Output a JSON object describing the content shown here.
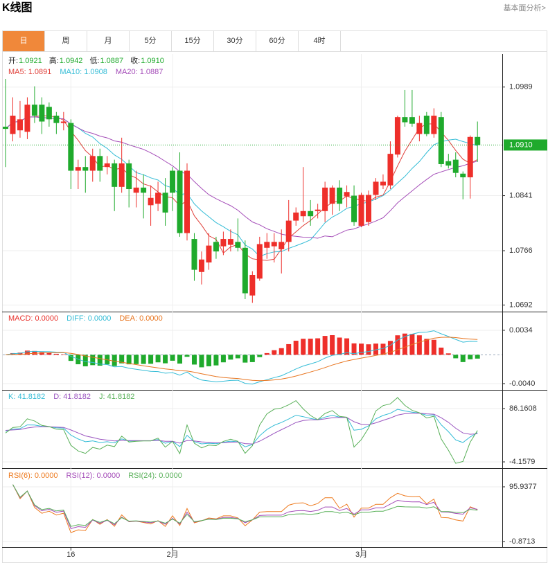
{
  "header": {
    "title": "K线图",
    "link": "基本面分析>"
  },
  "tabs": [
    "日",
    "周",
    "月",
    "5分",
    "15分",
    "30分",
    "60分",
    "4时"
  ],
  "active_tab": "日",
  "chart_data": {
    "type": "candlestick",
    "info": [
      {
        "label": "开:",
        "value": "1.0921"
      },
      {
        "label": "高:",
        "value": "1.0942"
      },
      {
        "label": "低:",
        "value": "1.0887"
      },
      {
        "label": "收:",
        "value": "1.0910"
      }
    ],
    "up_color": "#ee2f2a",
    "down_color": "#1faa2c",
    "ma": [
      {
        "name": "MA5: 1.0891",
        "period": 5,
        "color": "#e0403a"
      },
      {
        "name": "MA10: 1.0908",
        "period": 10,
        "color": "#33bcd6"
      },
      {
        "name": "MA20: 1.0887",
        "period": 20,
        "color": "#a44cb8"
      }
    ],
    "categories": [
      null,
      null,
      null,
      null,
      null,
      null,
      null,
      null,
      null,
      "16",
      null,
      null,
      null,
      null,
      null,
      null,
      null,
      null,
      null,
      null,
      null,
      null,
      null,
      "2月",
      null,
      null,
      null,
      null,
      null,
      null,
      null,
      null,
      null,
      null,
      null,
      null,
      null,
      null,
      null,
      null,
      null,
      null,
      null,
      null,
      null,
      null,
      null,
      null,
      null,
      "3月",
      null,
      null,
      null,
      null,
      null,
      null,
      null,
      null,
      null,
      null,
      null,
      null,
      null,
      null,
      null,
      null
    ],
    "open": [
      1.0935,
      1.0925,
      1.093,
      1.0928,
      1.0965,
      1.0965,
      1.0962,
      1.095,
      1.094,
      1.094,
      1.0875,
      1.088,
      1.0875,
      1.0895,
      1.088,
      1.0885,
      1.0853,
      1.0885,
      1.0845,
      1.0852,
      1.0828,
      1.083,
      1.0845,
      1.0875,
      1.0875,
      1.079,
      1.0782,
      1.0737,
      1.075,
      1.0778,
      1.0772,
      1.0774,
      1.0778,
      1.077,
      1.0705,
      1.0728,
      1.077,
      1.0772,
      1.0768,
      1.0778,
      1.0807,
      1.0813,
      1.082,
      1.082,
      1.082,
      1.083,
      1.0852,
      1.084,
      1.0841,
      1.08,
      1.0805,
      1.0842,
      1.0855,
      1.0855,
      1.0897,
      1.0948,
      1.0948,
      1.0925,
      1.095,
      1.0925,
      1.0948,
      1.0888,
      1.089,
      1.0871,
      1.0866,
      1.0921
    ],
    "high": [
      1.1,
      1.0975,
      1.097,
      1.0975,
      1.099,
      1.0975,
      1.0968,
      1.0955,
      1.0955,
      1.0945,
      1.089,
      1.0895,
      1.0905,
      1.0905,
      1.0895,
      1.089,
      1.092,
      1.089,
      1.0875,
      1.087,
      1.0855,
      1.086,
      1.0865,
      1.088,
      1.09,
      1.0885,
      1.079,
      1.0765,
      1.079,
      1.0785,
      1.0792,
      1.0795,
      1.081,
      1.078,
      1.0738,
      1.0785,
      1.079,
      1.079,
      1.0795,
      1.0835,
      1.0825,
      1.088,
      1.0835,
      1.083,
      1.086,
      1.0855,
      1.0862,
      1.0855,
      1.0855,
      1.0845,
      1.0848,
      1.0865,
      1.087,
      1.0915,
      1.095,
      1.0985,
      1.0985,
      1.095,
      1.0955,
      1.096,
      1.0955,
      1.0898,
      1.09,
      1.0874,
      1.0923,
      1.0942
    ],
    "low": [
      1.088,
      1.0915,
      1.092,
      1.0918,
      1.094,
      1.0925,
      1.0935,
      1.0925,
      1.093,
      1.085,
      1.085,
      1.0845,
      1.086,
      1.086,
      1.087,
      1.082,
      1.0845,
      1.0825,
      1.0825,
      1.081,
      1.08,
      1.082,
      1.08,
      1.082,
      1.0785,
      1.078,
      1.0725,
      1.072,
      1.074,
      1.0755,
      1.076,
      1.0765,
      1.0765,
      1.07,
      1.0695,
      1.0725,
      1.0755,
      1.075,
      1.0735,
      1.0765,
      1.08,
      1.0805,
      1.08,
      1.081,
      1.0805,
      1.0815,
      1.082,
      1.0825,
      1.08,
      1.0798,
      1.08,
      1.0835,
      1.085,
      1.085,
      1.0893,
      1.0935,
      1.0935,
      1.0915,
      1.0922,
      1.092,
      1.088,
      1.0878,
      1.0866,
      1.0836,
      1.0837,
      1.0887
    ],
    "close": [
      1.0932,
      1.095,
      1.0945,
      1.0965,
      1.095,
      1.0942,
      1.0945,
      1.094,
      1.0942,
      1.0875,
      1.088,
      1.0875,
      1.0895,
      1.0875,
      1.0885,
      1.0853,
      1.0885,
      1.085,
      1.0852,
      1.0845,
      1.0838,
      1.0845,
      1.0818,
      1.0845,
      1.079,
      1.0875,
      1.074,
      1.0754,
      1.0773,
      1.0765,
      1.0782,
      1.0782,
      1.077,
      1.0708,
      1.0733,
      1.0775,
      1.0778,
      1.0778,
      1.0778,
      1.0807,
      1.0818,
      1.082,
      1.0813,
      1.0822,
      1.0852,
      1.0852,
      1.083,
      1.0846,
      1.0805,
      1.0842,
      1.0842,
      1.086,
      1.086,
      1.0898,
      1.0948,
      1.0941,
      1.0939,
      1.094,
      1.0925,
      1.095,
      1.0884,
      1.0882,
      1.0872,
      1.0866,
      1.0921,
      1.091
    ],
    "ylim": [
      1.0683,
      1.1034
    ],
    "yticks": [
      1.0989,
      1.0841,
      1.0766,
      1.0692
    ],
    "last_price": {
      "value": 1.091,
      "label": "1.0910"
    },
    "last_color": "#1faa2c",
    "macd": {
      "legend": [
        {
          "name": "MACD: 0.0000",
          "color": "#e8302a"
        },
        {
          "name": "DIFF: 0.0000",
          "color": "#33bcd6"
        },
        {
          "name": "DEA: 0.0000",
          "color": "#e8741e"
        }
      ],
      "ylim": [
        -0.00487,
        0.0058
      ],
      "yticks": [
        0.0034,
        {
          "value": -0.004,
          "label": "-0.0040"
        }
      ]
    },
    "kdj": {
      "legend": [
        {
          "name": "K: 41.8182",
          "color": "#33bcd6"
        },
        {
          "name": "D: 41.8182",
          "color": "#9a55c0"
        },
        {
          "name": "J: 41.8182",
          "color": "#58b058"
        }
      ],
      "period": 9,
      "ylim": [
        -14.7,
        115.5
      ],
      "yticks": [
        86.1608,
        -4.1579
      ]
    },
    "rsi": {
      "legend": [
        {
          "name": "RSI(6): 0.0000",
          "color": "#ee7a1e",
          "period": 6
        },
        {
          "name": "RSI(12): 0.0000",
          "color": "#a44cb8",
          "period": 12
        },
        {
          "name": "RSI(24): 0.0000",
          "color": "#58b058",
          "period": 24
        }
      ],
      "ylim": [
        -10.7,
        126.6
      ],
      "yticks": [
        95.9377,
        -0.8713
      ]
    }
  }
}
